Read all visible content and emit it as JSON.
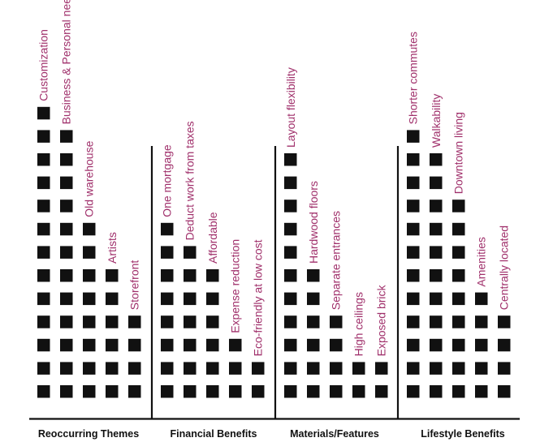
{
  "colors": {
    "square": "#111111",
    "label": "#a0306b",
    "axis": "#111111",
    "category_text": "#111111"
  },
  "chart_data": {
    "type": "bar",
    "style": "stacked-squares",
    "groups": [
      {
        "name": "Reoccurring Themes",
        "categories": [
          "Customization",
          "Business & Personal needs",
          "Old warehouse",
          "Artists",
          "Storefront"
        ],
        "values": [
          13,
          12,
          8,
          6,
          4
        ]
      },
      {
        "name": "Financial Benefits",
        "categories": [
          "One mortgage",
          "Deduct work from taxes",
          "Affordable",
          "Expense reduction",
          "Eco-friendly at low cost"
        ],
        "values": [
          8,
          7,
          6,
          3,
          2
        ]
      },
      {
        "name": "Materials/Features",
        "categories": [
          "Layout flexibility",
          "Hardwood floors",
          "Separate entrances",
          "High ceilings",
          "Exposed brick"
        ],
        "values": [
          11,
          6,
          4,
          2,
          2
        ]
      },
      {
        "name": "Lifestyle Benefits",
        "categories": [
          "Shorter commutes",
          "Walkability",
          "Downtown living",
          "Amenities",
          "Centrally located"
        ],
        "values": [
          12,
          11,
          9,
          5,
          4
        ]
      }
    ]
  }
}
